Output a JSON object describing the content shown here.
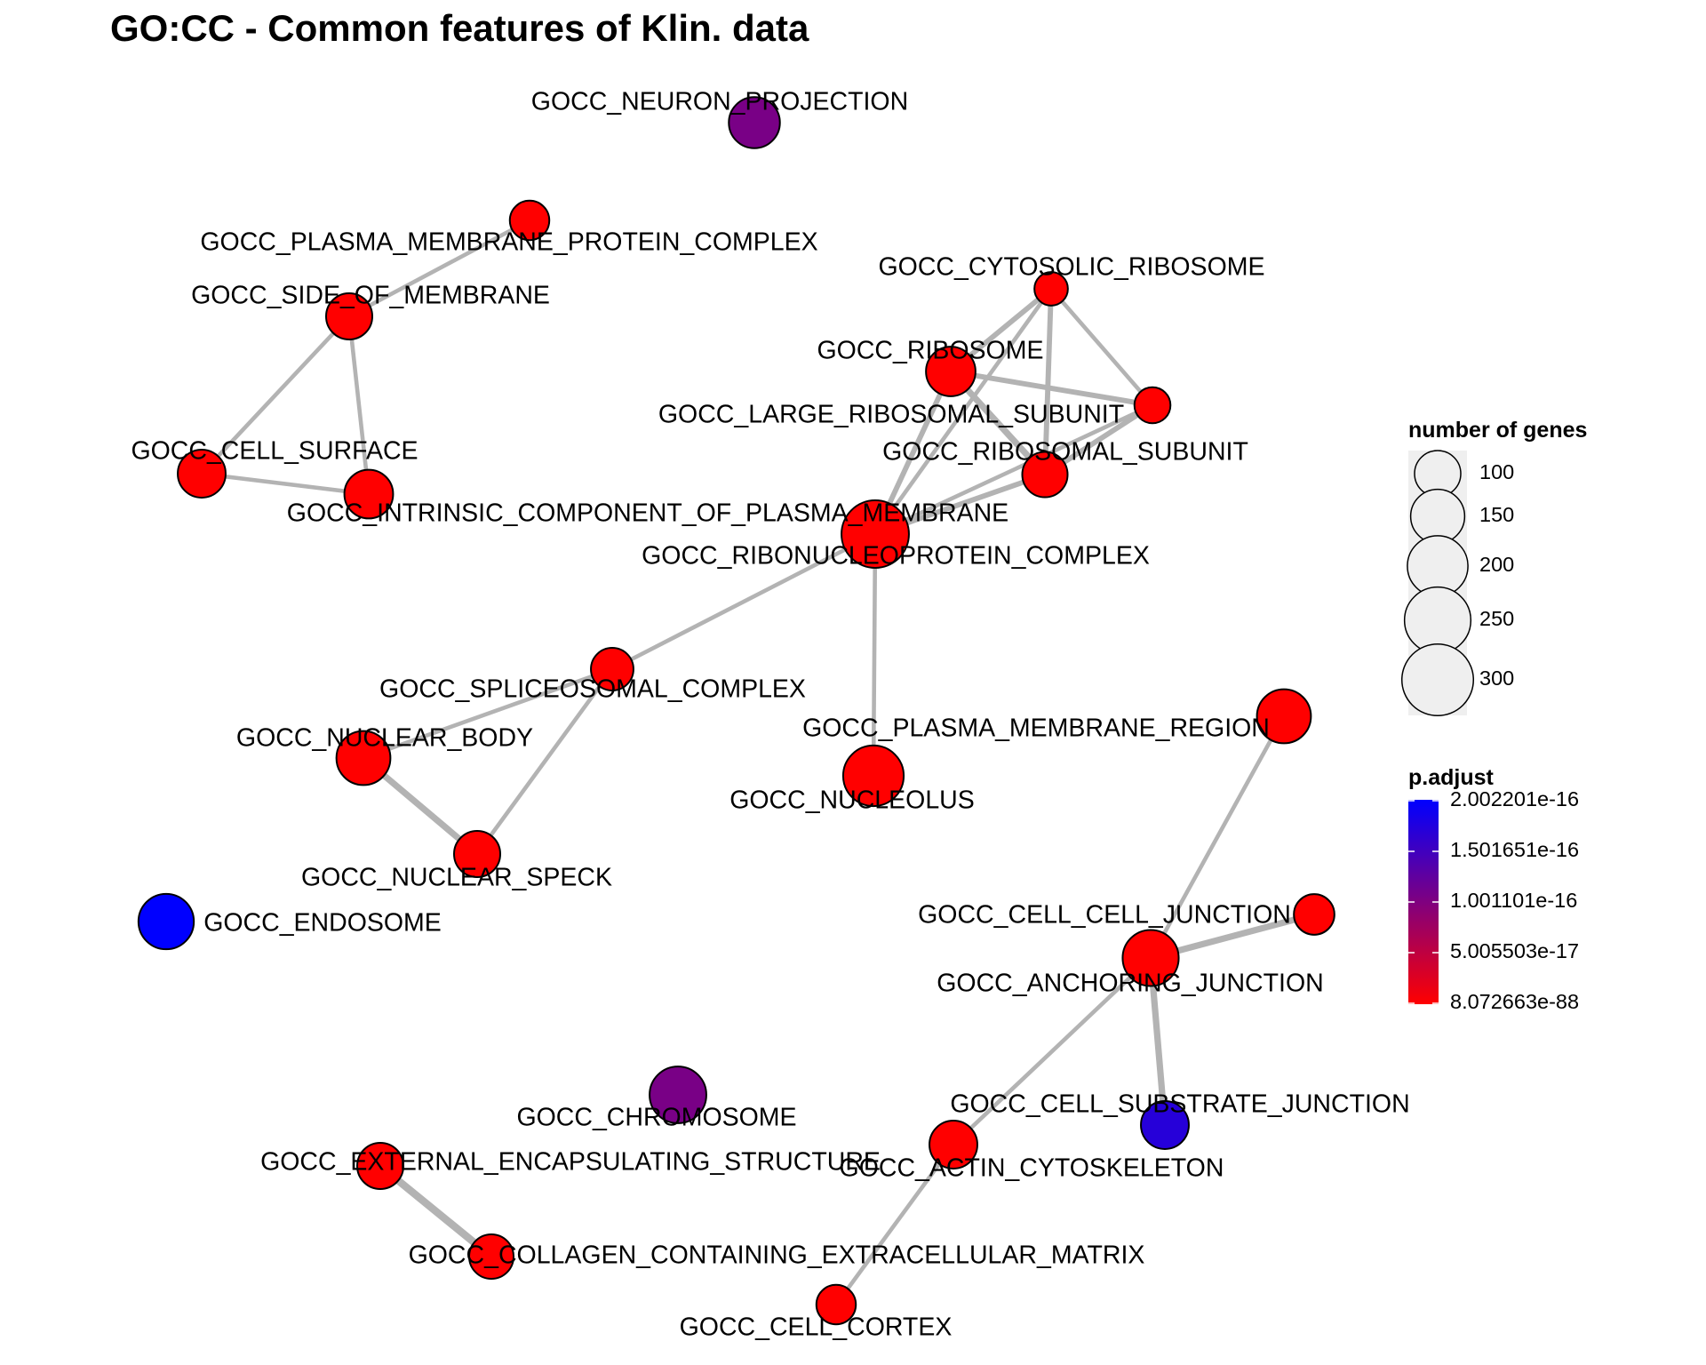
{
  "title": "GO:CC - Common features of Klin. data",
  "chart_data": {
    "type": "network",
    "nodes": [
      {
        "id": "GOCC_NEURON_PROJECTION",
        "genes": 130,
        "p_adjust": 1.05e-16
      },
      {
        "id": "GOCC_PLASMA_MEMBRANE_PROTEIN_COMPLEX",
        "genes": 65,
        "p_adjust": 8.07e-88
      },
      {
        "id": "GOCC_SIDE_OF_MEMBRANE",
        "genes": 100,
        "p_adjust": 8.07e-88
      },
      {
        "id": "GOCC_CELL_SURFACE",
        "genes": 110,
        "p_adjust": 8.07e-88
      },
      {
        "id": "GOCC_INTRINSIC_COMPONENT_OF_PLASMA_MEMBRANE",
        "genes": 115,
        "p_adjust": 8.07e-88
      },
      {
        "id": "GOCC_CYTOSOLIC_RIBOSOME",
        "genes": 40,
        "p_adjust": 8.07e-88
      },
      {
        "id": "GOCC_RIBOSOME",
        "genes": 120,
        "p_adjust": 8.07e-88
      },
      {
        "id": "GOCC_LARGE_RIBOSOMAL_SUBUNIT",
        "genes": 50,
        "p_adjust": 8.07e-88
      },
      {
        "id": "GOCC_RIBOSOMAL_SUBUNIT",
        "genes": 95,
        "p_adjust": 8.07e-88
      },
      {
        "id": "GOCC_RIBONUCLEOPROTEIN_COMPLEX",
        "genes": 260,
        "p_adjust": 8.07e-88
      },
      {
        "id": "GOCC_SPLICEOSOMAL_COMPLEX",
        "genes": 80,
        "p_adjust": 8.07e-88
      },
      {
        "id": "GOCC_NUCLEAR_BODY",
        "genes": 150,
        "p_adjust": 8.07e-88
      },
      {
        "id": "GOCC_NUCLEAR_SPECK",
        "genes": 100,
        "p_adjust": 8.07e-88
      },
      {
        "id": "GOCC_PLASMA_MEMBRANE_REGION",
        "genes": 150,
        "p_adjust": 8.07e-88
      },
      {
        "id": "GOCC_NUCLEOLUS",
        "genes": 200,
        "p_adjust": 8.07e-88
      },
      {
        "id": "GOCC_ENDOSOME",
        "genes": 160,
        "p_adjust": 2e-16
      },
      {
        "id": "GOCC_CELL_CELL_JUNCTION",
        "genes": 70,
        "p_adjust": 8.07e-88
      },
      {
        "id": "GOCC_ANCHORING_JUNCTION",
        "genes": 165,
        "p_adjust": 8.07e-88
      },
      {
        "id": "GOCC_CHROMOSOME",
        "genes": 170,
        "p_adjust": 1.05e-16
      },
      {
        "id": "GOCC_CELL_SUBSTRATE_JUNCTION",
        "genes": 110,
        "p_adjust": 1.7e-16
      },
      {
        "id": "GOCC_EXTERNAL_ENCAPSULATING_STRUCTURE",
        "genes": 100,
        "p_adjust": 8.07e-88
      },
      {
        "id": "GOCC_ACTIN_CYTOSKELETON",
        "genes": 110,
        "p_adjust": 8.07e-88
      },
      {
        "id": "GOCC_COLLAGEN_CONTAINING_EXTRACELLULAR_MATRIX",
        "genes": 90,
        "p_adjust": 8.07e-88
      },
      {
        "id": "GOCC_CELL_CORTEX",
        "genes": 65,
        "p_adjust": 8.07e-88
      }
    ],
    "edges": [
      {
        "source": "GOCC_PLASMA_MEMBRANE_PROTEIN_COMPLEX",
        "target": "GOCC_SIDE_OF_MEMBRANE",
        "weight": 2
      },
      {
        "source": "GOCC_SIDE_OF_MEMBRANE",
        "target": "GOCC_CELL_SURFACE",
        "weight": 2
      },
      {
        "source": "GOCC_SIDE_OF_MEMBRANE",
        "target": "GOCC_INTRINSIC_COMPONENT_OF_PLASMA_MEMBRANE",
        "weight": 2
      },
      {
        "source": "GOCC_CELL_SURFACE",
        "target": "GOCC_INTRINSIC_COMPONENT_OF_PLASMA_MEMBRANE",
        "weight": 2
      },
      {
        "source": "GOCC_CYTOSOLIC_RIBOSOME",
        "target": "GOCC_RIBOSOME",
        "weight": 3
      },
      {
        "source": "GOCC_CYTOSOLIC_RIBOSOME",
        "target": "GOCC_LARGE_RIBOSOMAL_SUBUNIT",
        "weight": 2
      },
      {
        "source": "GOCC_CYTOSOLIC_RIBOSOME",
        "target": "GOCC_RIBOSOMAL_SUBUNIT",
        "weight": 3
      },
      {
        "source": "GOCC_CYTOSOLIC_RIBOSOME",
        "target": "GOCC_RIBONUCLEOPROTEIN_COMPLEX",
        "weight": 2
      },
      {
        "source": "GOCC_RIBOSOME",
        "target": "GOCC_LARGE_RIBOSOMAL_SUBUNIT",
        "weight": 3
      },
      {
        "source": "GOCC_RIBOSOME",
        "target": "GOCC_RIBOSOMAL_SUBUNIT",
        "weight": 4
      },
      {
        "source": "GOCC_RIBOSOME",
        "target": "GOCC_RIBONUCLEOPROTEIN_COMPLEX",
        "weight": 3
      },
      {
        "source": "GOCC_LARGE_RIBOSOMAL_SUBUNIT",
        "target": "GOCC_RIBOSOMAL_SUBUNIT",
        "weight": 3
      },
      {
        "source": "GOCC_LARGE_RIBOSOMAL_SUBUNIT",
        "target": "GOCC_RIBONUCLEOPROTEIN_COMPLEX",
        "weight": 2
      },
      {
        "source": "GOCC_RIBOSOMAL_SUBUNIT",
        "target": "GOCC_RIBONUCLEOPROTEIN_COMPLEX",
        "weight": 3
      },
      {
        "source": "GOCC_RIBONUCLEOPROTEIN_COMPLEX",
        "target": "GOCC_SPLICEOSOMAL_COMPLEX",
        "weight": 2
      },
      {
        "source": "GOCC_RIBONUCLEOPROTEIN_COMPLEX",
        "target": "GOCC_NUCLEOLUS",
        "weight": 2
      },
      {
        "source": "GOCC_SPLICEOSOMAL_COMPLEX",
        "target": "GOCC_NUCLEAR_BODY",
        "weight": 2
      },
      {
        "source": "GOCC_SPLICEOSOMAL_COMPLEX",
        "target": "GOCC_NUCLEAR_SPECK",
        "weight": 2
      },
      {
        "source": "GOCC_NUCLEAR_BODY",
        "target": "GOCC_NUCLEAR_SPECK",
        "weight": 4
      },
      {
        "source": "GOCC_PLASMA_MEMBRANE_REGION",
        "target": "GOCC_ANCHORING_JUNCTION",
        "weight": 2
      },
      {
        "source": "GOCC_CELL_CELL_JUNCTION",
        "target": "GOCC_ANCHORING_JUNCTION",
        "weight": 4
      },
      {
        "source": "GOCC_ANCHORING_JUNCTION",
        "target": "GOCC_CELL_SUBSTRATE_JUNCTION",
        "weight": 4
      },
      {
        "source": "GOCC_ANCHORING_JUNCTION",
        "target": "GOCC_ACTIN_CYTOSKELETON",
        "weight": 2
      },
      {
        "source": "GOCC_ACTIN_CYTOSKELETON",
        "target": "GOCC_CELL_CORTEX",
        "weight": 2
      },
      {
        "source": "GOCC_EXTERNAL_ENCAPSULATING_STRUCTURE",
        "target": "GOCC_COLLAGEN_CONTAINING_EXTRACELLULAR_MATRIX",
        "weight": 5
      }
    ],
    "legend_size": {
      "title": "number of genes",
      "values": [
        100,
        150,
        200,
        250,
        300
      ],
      "labels": [
        "100",
        "150",
        "200",
        "250",
        "300"
      ]
    },
    "legend_color": {
      "title": "p.adjust",
      "min": 8.072663e-88,
      "max": 2.002201e-16,
      "labels": [
        "2.002201e-16",
        "1.501651e-16",
        "1.001101e-16",
        "5.005503e-17",
        "8.072663e-88"
      ],
      "color_low": "#ff0000",
      "color_high": "#0000ff"
    }
  }
}
